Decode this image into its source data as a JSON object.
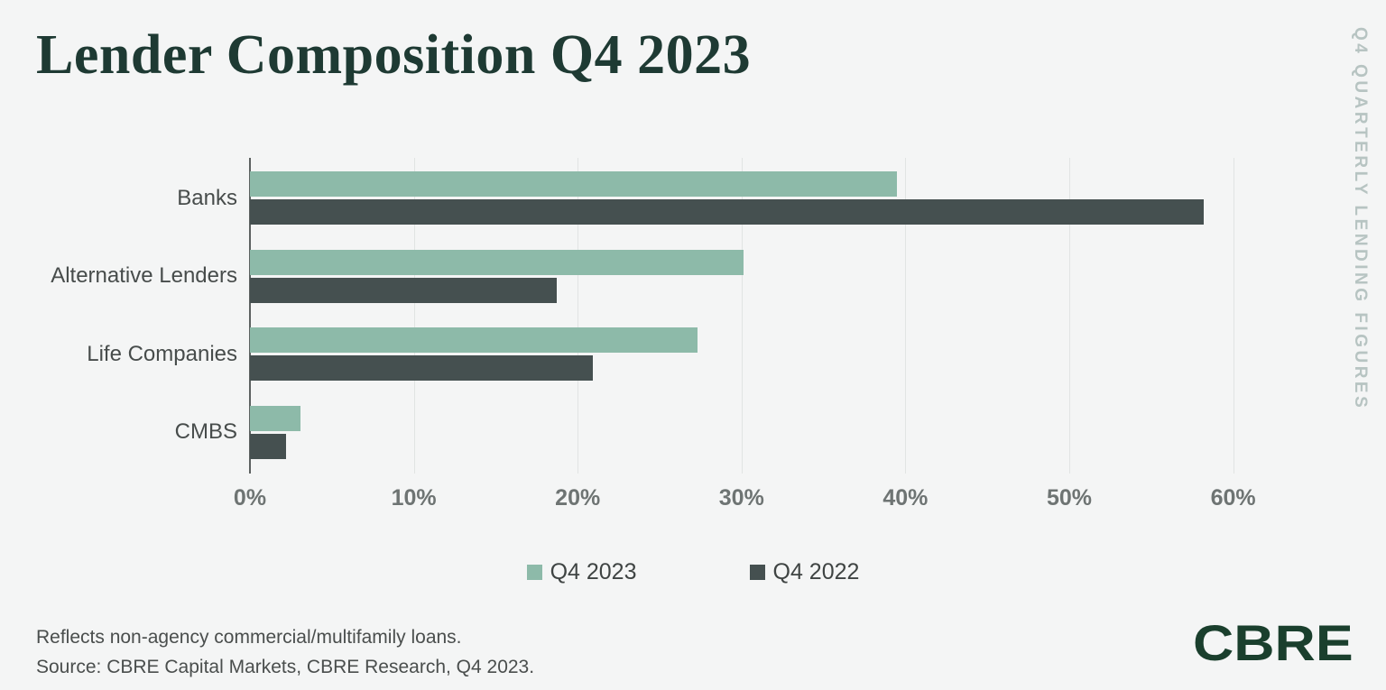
{
  "page": {
    "title": "Lender Composition Q4 2023",
    "side_label": "Q4 QUARTERLY LENDING FIGURES",
    "footnote_line1": "Reflects non-agency commercial/multifamily loans.",
    "footnote_line2": "Source: CBRE Capital Markets, CBRE Research, Q4 2023.",
    "logo_text": "CBRE"
  },
  "colors": {
    "background": "#f4f5f5",
    "title": "#1e3a33",
    "axis_line": "#5c6160",
    "gridline": "#e1e4e3",
    "side_label": "#b7c4c2",
    "logo_green": "#1a3f2d"
  },
  "chart_data": {
    "type": "bar",
    "orientation": "horizontal",
    "title": "Lender Composition Q4 2023",
    "categories": [
      "Banks",
      "Alternative Lenders",
      "Life Companies",
      "CMBS"
    ],
    "series": [
      {
        "name": "Q4 2023",
        "color": "#8dbaa9",
        "values": [
          39.5,
          30.1,
          27.3,
          3.1
        ]
      },
      {
        "name": "Q4 2022",
        "color": "#455050",
        "values": [
          58.2,
          18.7,
          20.9,
          2.2
        ]
      }
    ],
    "xlabel": "",
    "ylabel": "",
    "xlim": [
      0,
      60
    ],
    "x_tick_values": [
      0,
      10,
      20,
      30,
      40,
      50,
      60
    ],
    "x_tick_labels": [
      "0%",
      "10%",
      "20%",
      "30%",
      "40%",
      "50%",
      "60%"
    ],
    "grid": true,
    "legend_position": "bottom"
  }
}
